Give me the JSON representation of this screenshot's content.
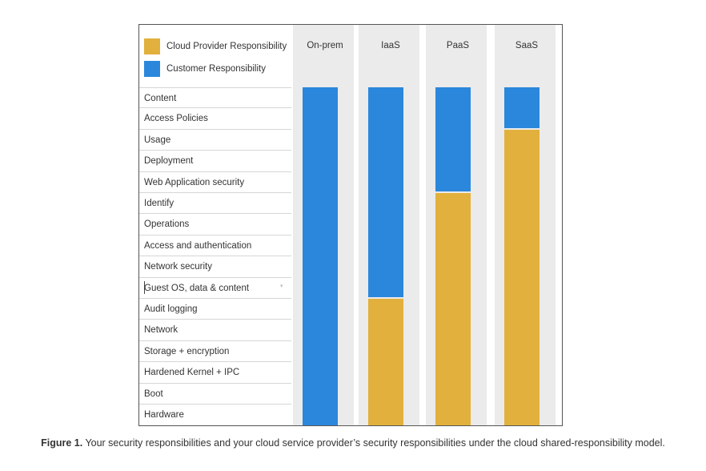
{
  "legend": [
    {
      "label": "Cloud Provider Responsibility",
      "color": "#e2b03c"
    },
    {
      "label": "Customer Responsibility",
      "color": "#2b87dc"
    }
  ],
  "columns": [
    {
      "label": "On-prem",
      "provider_rows": 0
    },
    {
      "label": "IaaS",
      "provider_rows": 6
    },
    {
      "label": "PaaS",
      "provider_rows": 11
    },
    {
      "label": "SaaS",
      "provider_rows": 14
    }
  ],
  "rows": [
    "Content",
    "Access Policies",
    "Usage",
    "Deployment",
    "Web Application security",
    "Identify",
    "Operations",
    "Access and authentication",
    "Network security",
    "Guest OS, data & content",
    "Audit logging",
    "Network",
    "Storage + encryption",
    "Hardened Kernel + IPC",
    "Boot",
    "Hardware"
  ],
  "caption": {
    "bold": "Figure 1.",
    "text": " Your security responsibilities and your cloud service provider’s security responsibilities under the cloud shared-responsibility model."
  }
}
